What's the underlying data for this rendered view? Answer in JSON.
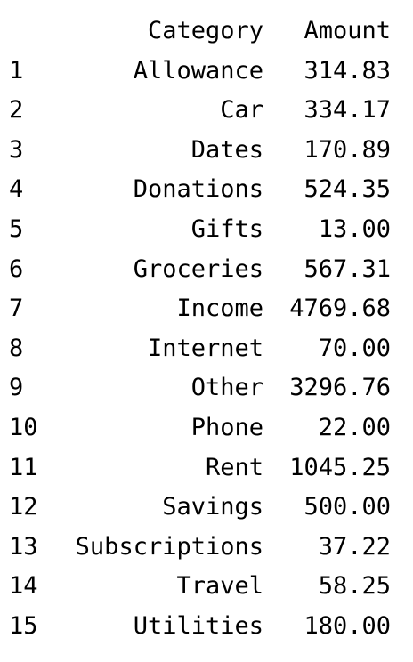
{
  "table": {
    "columns": [
      "",
      "Category",
      "Amount"
    ],
    "rows": [
      {
        "index": "1",
        "category": "Allowance",
        "amount": "314.83"
      },
      {
        "index": "2",
        "category": "Car",
        "amount": "334.17"
      },
      {
        "index": "3",
        "category": "Dates",
        "amount": "170.89"
      },
      {
        "index": "4",
        "category": "Donations",
        "amount": "524.35"
      },
      {
        "index": "5",
        "category": "Gifts",
        "amount": "13.00"
      },
      {
        "index": "6",
        "category": "Groceries",
        "amount": "567.31"
      },
      {
        "index": "7",
        "category": "Income",
        "amount": "4769.68"
      },
      {
        "index": "8",
        "category": "Internet",
        "amount": "70.00"
      },
      {
        "index": "9",
        "category": "Other",
        "amount": "3296.76"
      },
      {
        "index": "10",
        "category": "Phone",
        "amount": "22.00"
      },
      {
        "index": "11",
        "category": "Rent",
        "amount": "1045.25"
      },
      {
        "index": "12",
        "category": "Savings",
        "amount": "500.00"
      },
      {
        "index": "13",
        "category": "Subscriptions",
        "amount": "37.22"
      },
      {
        "index": "14",
        "category": "Travel",
        "amount": "58.25"
      },
      {
        "index": "15",
        "category": "Utilities",
        "amount": "180.00"
      }
    ]
  }
}
